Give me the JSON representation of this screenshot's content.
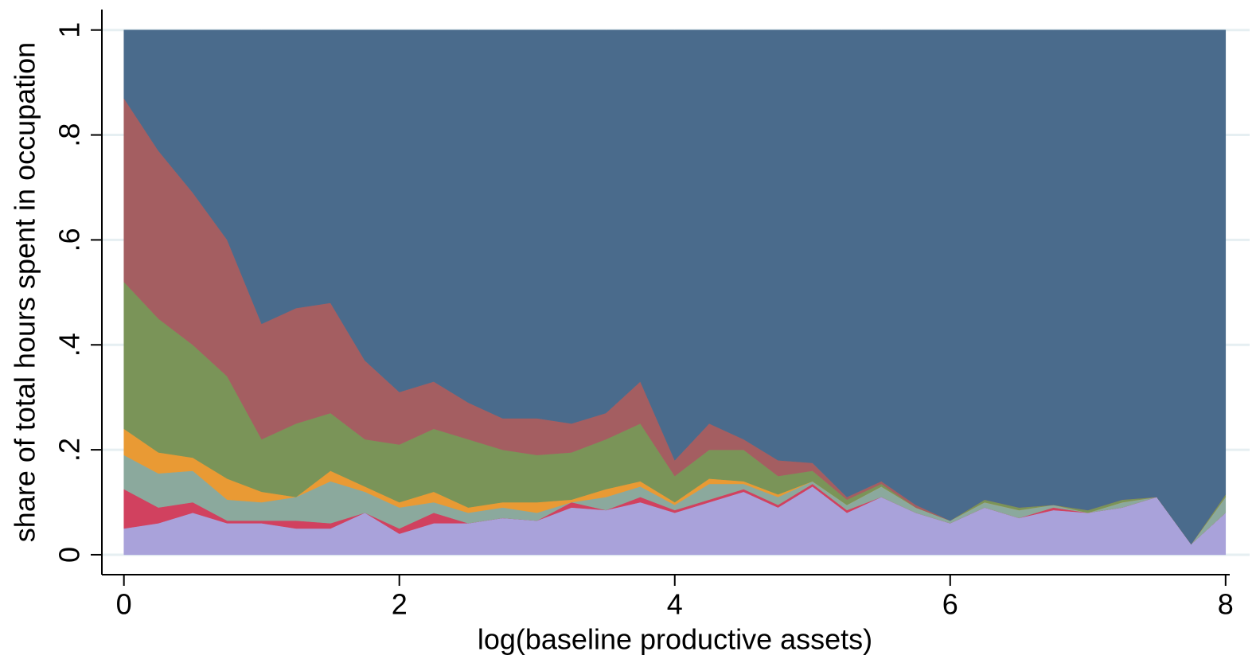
{
  "chart_data": {
    "type": "stacked-area",
    "xlabel": "log(baseline productive assets)",
    "ylabel": "share of total hours spent in occupation",
    "x": [
      0,
      0.25,
      0.5,
      0.75,
      1,
      1.25,
      1.5,
      1.75,
      2,
      2.25,
      2.5,
      2.75,
      3,
      3.25,
      3.5,
      3.75,
      4,
      4.25,
      4.5,
      4.75,
      5,
      5.25,
      5.5,
      5.75,
      6,
      6.25,
      6.5,
      6.75,
      7,
      7.25,
      7.5,
      7.75,
      8
    ],
    "series": [
      {
        "color": "#a9a2da",
        "values": [
          0.05,
          0.06,
          0.08,
          0.06,
          0.06,
          0.05,
          0.05,
          0.08,
          0.04,
          0.06,
          0.06,
          0.07,
          0.065,
          0.09,
          0.085,
          0.1,
          0.08,
          0.1,
          0.12,
          0.09,
          0.13,
          0.08,
          0.11,
          0.08,
          0.06,
          0.09,
          0.07,
          0.085,
          0.08,
          0.09,
          0.11,
          0.02,
          0.08
        ]
      },
      {
        "color": "#d1415f",
        "values": [
          0.075,
          0.03,
          0.02,
          0.005,
          0.005,
          0.015,
          0.01,
          0,
          0.01,
          0.02,
          0,
          0,
          0,
          0.01,
          0,
          0.01,
          0.005,
          0.005,
          0.005,
          0.005,
          0.005,
          0.005,
          0,
          0,
          0,
          0,
          0,
          0.005,
          0,
          0,
          0,
          0,
          0
        ]
      },
      {
        "color": "#8ba99d",
        "values": [
          0.065,
          0.065,
          0.06,
          0.04,
          0.035,
          0.045,
          0.08,
          0.04,
          0.04,
          0.02,
          0.02,
          0.02,
          0.015,
          0,
          0.025,
          0.02,
          0.01,
          0.03,
          0.01,
          0.015,
          0.005,
          0.01,
          0.02,
          0.01,
          0.005,
          0.01,
          0.015,
          0.005,
          0,
          0.01,
          0,
          0,
          0.03
        ]
      },
      {
        "color": "#e99a34",
        "values": [
          0.05,
          0.04,
          0.025,
          0.04,
          0.02,
          0,
          0.02,
          0.01,
          0.01,
          0.02,
          0.01,
          0.01,
          0.02,
          0.005,
          0.015,
          0.01,
          0.005,
          0.01,
          0.005,
          0.005,
          0,
          0,
          0,
          0,
          0,
          0,
          0,
          0,
          0,
          0,
          0,
          0,
          0
        ]
      },
      {
        "color": "#7a9458",
        "values": [
          0.28,
          0.255,
          0.215,
          0.195,
          0.1,
          0.14,
          0.11,
          0.09,
          0.11,
          0.12,
          0.13,
          0.1,
          0.09,
          0.09,
          0.095,
          0.11,
          0.05,
          0.055,
          0.06,
          0.035,
          0.02,
          0.01,
          0.005,
          0,
          0,
          0.005,
          0.005,
          0,
          0.005,
          0.005,
          0,
          0,
          0.005
        ]
      },
      {
        "color": "#a45e61",
        "values": [
          0.35,
          0.32,
          0.29,
          0.26,
          0.22,
          0.22,
          0.21,
          0.15,
          0.1,
          0.09,
          0.07,
          0.06,
          0.07,
          0.055,
          0.05,
          0.08,
          0.03,
          0.05,
          0.02,
          0.03,
          0.015,
          0.005,
          0.005,
          0.005,
          0,
          0,
          0,
          0,
          0,
          0,
          0,
          0,
          0
        ]
      },
      {
        "color": "#4a6b8c",
        "values": [
          0.13,
          0.23,
          0.31,
          0.4,
          0.56,
          0.53,
          0.52,
          0.63,
          0.69,
          0.67,
          0.71,
          0.74,
          0.74,
          0.75,
          0.73,
          0.67,
          0.82,
          0.75,
          0.78,
          0.82,
          0.825,
          0.89,
          0.86,
          0.905,
          0.935,
          0.895,
          0.91,
          0.905,
          0.915,
          0.895,
          0.89,
          0.98,
          0.885
        ]
      }
    ],
    "xlim": [
      -0.16,
      8.03
    ],
    "ylim": [
      -0.038,
      1.039
    ],
    "xticks": [
      0,
      2,
      4,
      6,
      8
    ],
    "yticks": [
      0,
      {
        "value": 0.2,
        "label": ".2"
      },
      {
        "value": 0.4,
        "label": ".4"
      },
      {
        "value": 0.6,
        "label": ".6"
      },
      {
        "value": 0.8,
        "label": ".8"
      },
      1
    ],
    "grid": true
  }
}
